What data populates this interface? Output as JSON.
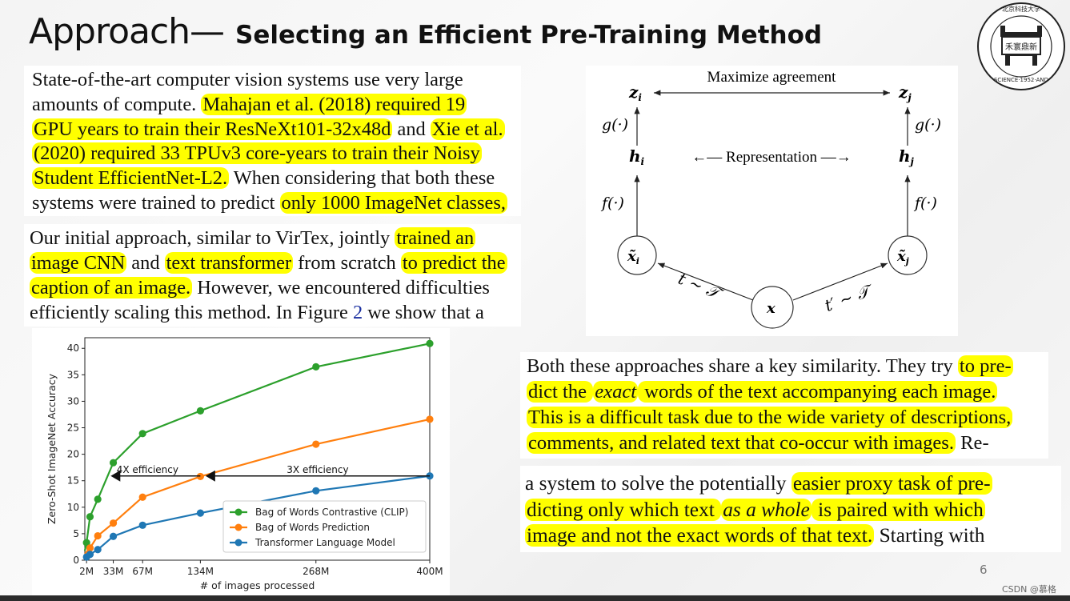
{
  "slide": {
    "title_main": "Approach—",
    "title_sub": "Selecting an Efficient Pre-Training Method",
    "page_number": "6",
    "watermark": "CSDN @慕格",
    "logo_label": "UNIVERSITY OF SCIENCE·1952·AND TECHNOLOGY BEIJING"
  },
  "colors": {
    "highlight": "#ffff00",
    "clip_green": "#2ca02c",
    "bow_orange": "#ff7f0e",
    "transformer_blue": "#1f77b4",
    "link_blue": "#1a2fa0"
  },
  "paragraph1": {
    "lines": [
      [
        {
          "t": "State-of-the-art computer vision systems use very large"
        }
      ],
      [
        {
          "t": "amounts of compute. "
        },
        {
          "t": "Mahajan et al. (2018) required 19",
          "hl": true
        }
      ],
      [
        {
          "t": "GPU years to train their ResNeXt101-32x48d",
          "hl": true
        },
        {
          "t": " and "
        },
        {
          "t": "Xie et al.",
          "hl": true
        }
      ],
      [
        {
          "t": "(2020) required 33 TPUv3 core-years to train their Noisy",
          "hl": true
        }
      ],
      [
        {
          "t": "Student EfficientNet-L2.",
          "hl": true
        },
        {
          "t": " When considering that both these"
        }
      ],
      [
        {
          "t": "systems were trained to predict "
        },
        {
          "t": "only 1000 ImageNet classes,",
          "hl": true
        }
      ]
    ]
  },
  "paragraph2": {
    "lines": [
      [
        {
          "t": "Our initial approach, similar to VirTex, jointly "
        },
        {
          "t": "trained an",
          "hl": true
        }
      ],
      [
        {
          "t": "image CNN",
          "hl": true
        },
        {
          "t": " and "
        },
        {
          "t": "text transformer",
          "hl": true
        },
        {
          "t": " from scratch "
        },
        {
          "t": "to predict the",
          "hl": true
        }
      ],
      [
        {
          "t": "caption of an image.",
          "hl": true
        },
        {
          "t": " However, we encountered difficulties"
        }
      ],
      [
        {
          "t": "efficiently scaling this method. In Figure "
        },
        {
          "t": "2",
          "link": true
        },
        {
          "t": " we show that a"
        }
      ]
    ]
  },
  "paragraph3": {
    "lines": [
      [
        {
          "t": "Both these approaches share a key similarity. They try "
        },
        {
          "t": "to pre-",
          "hl": true
        }
      ],
      [
        {
          "t": "dict the ",
          "hl": true
        },
        {
          "t": "exact",
          "hl": true,
          "em": true
        },
        {
          "t": " words of the text accompanying each image.",
          "hl": true
        }
      ],
      [
        {
          "t": "This is a difficult task due to the wide variety of descriptions,",
          "hl": true
        }
      ],
      [
        {
          "t": "comments, and related text that co-occur with images.",
          "hl": true
        },
        {
          "t": " Re-"
        }
      ]
    ]
  },
  "paragraph4": {
    "lines": [
      [
        {
          "t": "a system to solve the potentially "
        },
        {
          "t": "easier proxy task of pre-",
          "hl": true
        }
      ],
      [
        {
          "t": "dicting only which text ",
          "hl": true
        },
        {
          "t": "as a whole",
          "hl": true,
          "em": true
        },
        {
          "t": " is paired with which",
          "hl": true
        }
      ],
      [
        {
          "t": "image and not the exact words of that text.",
          "hl": true
        },
        {
          "t": "  Starting with"
        }
      ]
    ]
  },
  "diagram": {
    "top_label": "Maximize agreement",
    "middle_label": "←— Representation —→",
    "z_i": "z",
    "z_j": "z",
    "h_i": "h",
    "h_j": "h",
    "g_left": "g(·)",
    "g_right": "g(·)",
    "f_left": "f(·)",
    "f_right": "f(·)",
    "x_tilde_i": "x̃",
    "x_tilde_j": "x̃",
    "x": "x",
    "sub_i": "i",
    "sub_j": "j",
    "t_left": "t ∼ 𝒯",
    "t_right": "t′ ∼ 𝒯"
  },
  "chart_data": {
    "type": "line",
    "title": "",
    "xlabel": "# of images processed",
    "ylabel": "Zero-Shot ImageNet Accuracy",
    "x_ticks": [
      "2M",
      "33M",
      "67M",
      "134M",
      "268M",
      "400M"
    ],
    "x_tick_values": [
      2,
      33,
      67,
      134,
      268,
      400
    ],
    "y_ticks": [
      0,
      5,
      10,
      15,
      20,
      25,
      30,
      35,
      40
    ],
    "xlim": [
      0,
      400
    ],
    "ylim": [
      0,
      42
    ],
    "grid": false,
    "legend_position": "lower right",
    "series": [
      {
        "name": "Bag of Words Contrastive (CLIP)",
        "color": "#2ca02c",
        "x": [
          0,
          2,
          6,
          15,
          33,
          67,
          134,
          268,
          400
        ],
        "y": [
          1.8,
          3.3,
          8.2,
          11.5,
          18.4,
          23.9,
          28.2,
          36.5,
          40.9
        ]
      },
      {
        "name": "Bag of Words Prediction",
        "color": "#ff7f0e",
        "x": [
          0,
          6,
          15,
          33,
          67,
          134,
          268,
          400
        ],
        "y": [
          1.2,
          2.3,
          4.6,
          7.0,
          11.9,
          15.8,
          21.9,
          26.6
        ]
      },
      {
        "name": "Transformer Language Model",
        "color": "#1f77b4",
        "x": [
          0,
          2,
          6,
          15,
          33,
          67,
          134,
          268,
          400
        ],
        "y": [
          0.2,
          0.6,
          1.1,
          2.0,
          4.5,
          6.6,
          8.9,
          13.1,
          15.9
        ]
      }
    ],
    "annotations": [
      {
        "text": "4X efficiency",
        "arrow_from_x": 134,
        "arrow_to_x": 30,
        "y": 15.9
      },
      {
        "text": "3X efficiency",
        "arrow_from_x": 400,
        "arrow_to_x": 140,
        "y": 15.9
      }
    ]
  }
}
